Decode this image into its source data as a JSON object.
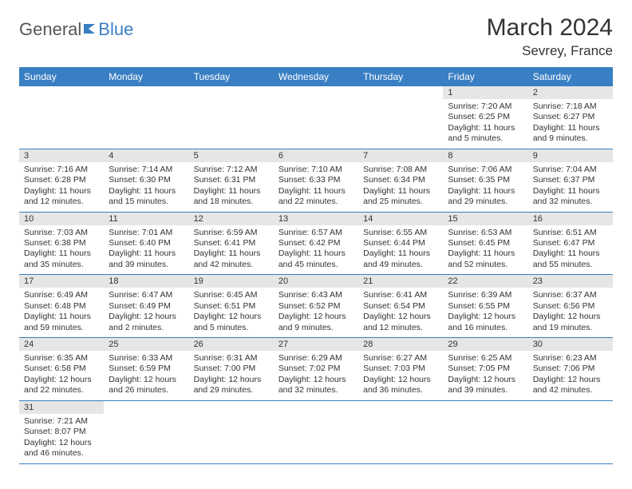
{
  "logo": {
    "text1": "General",
    "text2": "Blue"
  },
  "title": "March 2024",
  "location": "Sevrey, France",
  "colors": {
    "accent": "#3a7fc4",
    "daynum_bg": "#e6e6e6",
    "text": "#333333",
    "bg": "#ffffff"
  },
  "weekdays": [
    "Sunday",
    "Monday",
    "Tuesday",
    "Wednesday",
    "Thursday",
    "Friday",
    "Saturday"
  ],
  "weeks": [
    [
      null,
      null,
      null,
      null,
      null,
      {
        "n": "1",
        "sr": "Sunrise: 7:20 AM",
        "ss": "Sunset: 6:25 PM",
        "dl": "Daylight: 11 hours and 5 minutes."
      },
      {
        "n": "2",
        "sr": "Sunrise: 7:18 AM",
        "ss": "Sunset: 6:27 PM",
        "dl": "Daylight: 11 hours and 9 minutes."
      }
    ],
    [
      {
        "n": "3",
        "sr": "Sunrise: 7:16 AM",
        "ss": "Sunset: 6:28 PM",
        "dl": "Daylight: 11 hours and 12 minutes."
      },
      {
        "n": "4",
        "sr": "Sunrise: 7:14 AM",
        "ss": "Sunset: 6:30 PM",
        "dl": "Daylight: 11 hours and 15 minutes."
      },
      {
        "n": "5",
        "sr": "Sunrise: 7:12 AM",
        "ss": "Sunset: 6:31 PM",
        "dl": "Daylight: 11 hours and 18 minutes."
      },
      {
        "n": "6",
        "sr": "Sunrise: 7:10 AM",
        "ss": "Sunset: 6:33 PM",
        "dl": "Daylight: 11 hours and 22 minutes."
      },
      {
        "n": "7",
        "sr": "Sunrise: 7:08 AM",
        "ss": "Sunset: 6:34 PM",
        "dl": "Daylight: 11 hours and 25 minutes."
      },
      {
        "n": "8",
        "sr": "Sunrise: 7:06 AM",
        "ss": "Sunset: 6:35 PM",
        "dl": "Daylight: 11 hours and 29 minutes."
      },
      {
        "n": "9",
        "sr": "Sunrise: 7:04 AM",
        "ss": "Sunset: 6:37 PM",
        "dl": "Daylight: 11 hours and 32 minutes."
      }
    ],
    [
      {
        "n": "10",
        "sr": "Sunrise: 7:03 AM",
        "ss": "Sunset: 6:38 PM",
        "dl": "Daylight: 11 hours and 35 minutes."
      },
      {
        "n": "11",
        "sr": "Sunrise: 7:01 AM",
        "ss": "Sunset: 6:40 PM",
        "dl": "Daylight: 11 hours and 39 minutes."
      },
      {
        "n": "12",
        "sr": "Sunrise: 6:59 AM",
        "ss": "Sunset: 6:41 PM",
        "dl": "Daylight: 11 hours and 42 minutes."
      },
      {
        "n": "13",
        "sr": "Sunrise: 6:57 AM",
        "ss": "Sunset: 6:42 PM",
        "dl": "Daylight: 11 hours and 45 minutes."
      },
      {
        "n": "14",
        "sr": "Sunrise: 6:55 AM",
        "ss": "Sunset: 6:44 PM",
        "dl": "Daylight: 11 hours and 49 minutes."
      },
      {
        "n": "15",
        "sr": "Sunrise: 6:53 AM",
        "ss": "Sunset: 6:45 PM",
        "dl": "Daylight: 11 hours and 52 minutes."
      },
      {
        "n": "16",
        "sr": "Sunrise: 6:51 AM",
        "ss": "Sunset: 6:47 PM",
        "dl": "Daylight: 11 hours and 55 minutes."
      }
    ],
    [
      {
        "n": "17",
        "sr": "Sunrise: 6:49 AM",
        "ss": "Sunset: 6:48 PM",
        "dl": "Daylight: 11 hours and 59 minutes."
      },
      {
        "n": "18",
        "sr": "Sunrise: 6:47 AM",
        "ss": "Sunset: 6:49 PM",
        "dl": "Daylight: 12 hours and 2 minutes."
      },
      {
        "n": "19",
        "sr": "Sunrise: 6:45 AM",
        "ss": "Sunset: 6:51 PM",
        "dl": "Daylight: 12 hours and 5 minutes."
      },
      {
        "n": "20",
        "sr": "Sunrise: 6:43 AM",
        "ss": "Sunset: 6:52 PM",
        "dl": "Daylight: 12 hours and 9 minutes."
      },
      {
        "n": "21",
        "sr": "Sunrise: 6:41 AM",
        "ss": "Sunset: 6:54 PM",
        "dl": "Daylight: 12 hours and 12 minutes."
      },
      {
        "n": "22",
        "sr": "Sunrise: 6:39 AM",
        "ss": "Sunset: 6:55 PM",
        "dl": "Daylight: 12 hours and 16 minutes."
      },
      {
        "n": "23",
        "sr": "Sunrise: 6:37 AM",
        "ss": "Sunset: 6:56 PM",
        "dl": "Daylight: 12 hours and 19 minutes."
      }
    ],
    [
      {
        "n": "24",
        "sr": "Sunrise: 6:35 AM",
        "ss": "Sunset: 6:58 PM",
        "dl": "Daylight: 12 hours and 22 minutes."
      },
      {
        "n": "25",
        "sr": "Sunrise: 6:33 AM",
        "ss": "Sunset: 6:59 PM",
        "dl": "Daylight: 12 hours and 26 minutes."
      },
      {
        "n": "26",
        "sr": "Sunrise: 6:31 AM",
        "ss": "Sunset: 7:00 PM",
        "dl": "Daylight: 12 hours and 29 minutes."
      },
      {
        "n": "27",
        "sr": "Sunrise: 6:29 AM",
        "ss": "Sunset: 7:02 PM",
        "dl": "Daylight: 12 hours and 32 minutes."
      },
      {
        "n": "28",
        "sr": "Sunrise: 6:27 AM",
        "ss": "Sunset: 7:03 PM",
        "dl": "Daylight: 12 hours and 36 minutes."
      },
      {
        "n": "29",
        "sr": "Sunrise: 6:25 AM",
        "ss": "Sunset: 7:05 PM",
        "dl": "Daylight: 12 hours and 39 minutes."
      },
      {
        "n": "30",
        "sr": "Sunrise: 6:23 AM",
        "ss": "Sunset: 7:06 PM",
        "dl": "Daylight: 12 hours and 42 minutes."
      }
    ],
    [
      {
        "n": "31",
        "sr": "Sunrise: 7:21 AM",
        "ss": "Sunset: 8:07 PM",
        "dl": "Daylight: 12 hours and 46 minutes."
      },
      null,
      null,
      null,
      null,
      null,
      null
    ]
  ]
}
